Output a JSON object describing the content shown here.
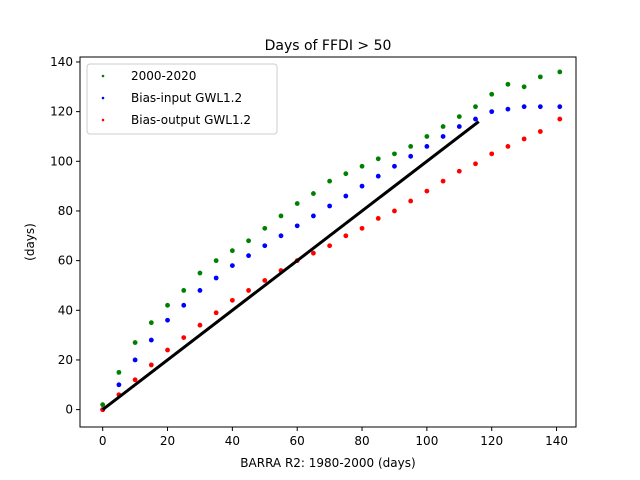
{
  "chart_data": {
    "type": "scatter",
    "title": "Days of FFDI > 50",
    "xlabel": "BARRA R2: 1980-2000 (days)",
    "ylabel": "(days)",
    "xlim": [
      -7,
      146
    ],
    "ylim": [
      -7,
      142
    ],
    "xticks": [
      0,
      20,
      40,
      60,
      80,
      100,
      120,
      140
    ],
    "yticks": [
      0,
      20,
      40,
      60,
      80,
      100,
      120,
      140
    ],
    "legend_position": "top-left",
    "series": [
      {
        "name": "2000-2020",
        "color": "#008000",
        "marker": "dot",
        "points": [
          [
            0,
            2
          ],
          [
            5,
            15
          ],
          [
            10,
            27
          ],
          [
            15,
            35
          ],
          [
            20,
            42
          ],
          [
            25,
            48
          ],
          [
            30,
            55
          ],
          [
            35,
            60
          ],
          [
            40,
            64
          ],
          [
            45,
            68
          ],
          [
            50,
            73
          ],
          [
            55,
            78
          ],
          [
            60,
            83
          ],
          [
            65,
            87
          ],
          [
            70,
            92
          ],
          [
            75,
            95
          ],
          [
            80,
            98
          ],
          [
            85,
            101
          ],
          [
            90,
            103
          ],
          [
            95,
            106
          ],
          [
            100,
            110
          ],
          [
            105,
            114
          ],
          [
            110,
            118
          ],
          [
            115,
            122
          ],
          [
            120,
            127
          ],
          [
            125,
            131
          ],
          [
            130,
            130
          ],
          [
            135,
            134
          ],
          [
            141,
            136
          ]
        ]
      },
      {
        "name": "Bias-input GWL1.2",
        "color": "#0000ff",
        "marker": "dot",
        "points": [
          [
            0,
            0
          ],
          [
            5,
            10
          ],
          [
            10,
            20
          ],
          [
            15,
            28
          ],
          [
            20,
            36
          ],
          [
            25,
            42
          ],
          [
            30,
            48
          ],
          [
            35,
            53
          ],
          [
            40,
            58
          ],
          [
            45,
            62
          ],
          [
            50,
            66
          ],
          [
            55,
            70
          ],
          [
            60,
            74
          ],
          [
            65,
            78
          ],
          [
            70,
            82
          ],
          [
            75,
            86
          ],
          [
            80,
            90
          ],
          [
            85,
            94
          ],
          [
            90,
            98
          ],
          [
            95,
            102
          ],
          [
            100,
            106
          ],
          [
            105,
            110
          ],
          [
            110,
            114
          ],
          [
            115,
            117
          ],
          [
            120,
            120
          ],
          [
            125,
            121
          ],
          [
            130,
            122
          ],
          [
            135,
            122
          ],
          [
            141,
            122
          ]
        ]
      },
      {
        "name": "Bias-output GWL1.2",
        "color": "#ff0000",
        "marker": "dot",
        "points": [
          [
            0,
            0
          ],
          [
            5,
            6
          ],
          [
            10,
            12
          ],
          [
            15,
            18
          ],
          [
            20,
            24
          ],
          [
            25,
            29
          ],
          [
            30,
            34
          ],
          [
            35,
            39
          ],
          [
            40,
            44
          ],
          [
            45,
            48
          ],
          [
            50,
            52
          ],
          [
            55,
            56
          ],
          [
            60,
            60
          ],
          [
            65,
            63
          ],
          [
            70,
            66
          ],
          [
            75,
            70
          ],
          [
            80,
            73
          ],
          [
            85,
            77
          ],
          [
            90,
            80
          ],
          [
            95,
            84
          ],
          [
            100,
            88
          ],
          [
            105,
            92
          ],
          [
            110,
            96
          ],
          [
            115,
            99
          ],
          [
            120,
            103
          ],
          [
            125,
            106
          ],
          [
            130,
            109
          ],
          [
            135,
            112
          ],
          [
            141,
            117
          ]
        ]
      }
    ],
    "reference_line": {
      "color": "#000000",
      "from": [
        0,
        0
      ],
      "to": [
        116,
        116
      ]
    }
  }
}
